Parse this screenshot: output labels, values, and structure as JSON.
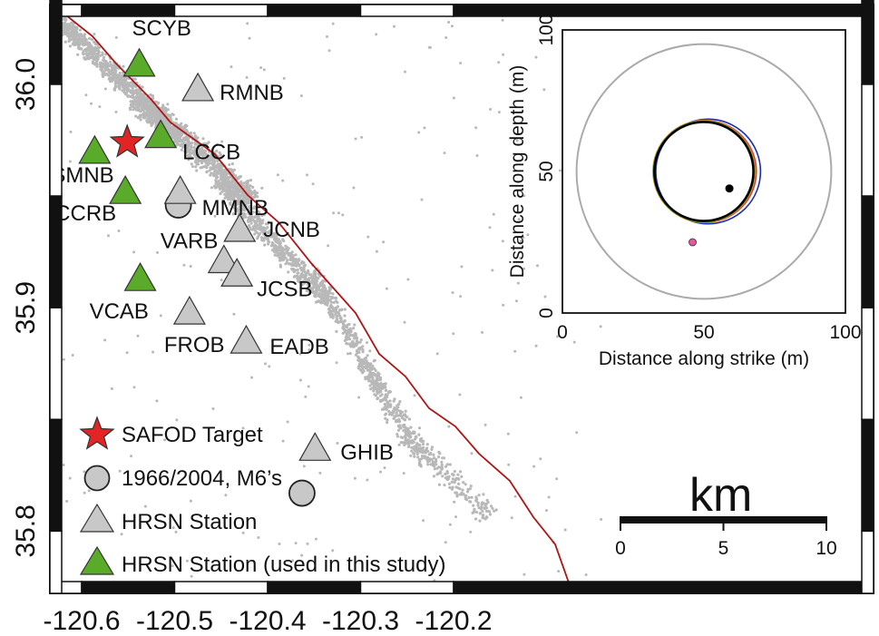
{
  "map": {
    "x_ticks": [
      {
        "value": -120.6,
        "label": "-120.6"
      },
      {
        "value": -120.5,
        "label": "-120.5"
      },
      {
        "value": -120.4,
        "label": "-120.4"
      },
      {
        "value": -120.3,
        "label": "-120.3"
      },
      {
        "value": -120.2,
        "label": "-120.2"
      }
    ],
    "y_ticks": [
      {
        "value": 36.0,
        "label": "36.0"
      },
      {
        "value": 35.9,
        "label": "35.9"
      },
      {
        "value": 35.8,
        "label": "35.8"
      }
    ],
    "fault_color": "#b01414",
    "seismicity_color": "#b8b8b8",
    "used_station_color": "#5aab2a",
    "station_color": "#c8c8c8",
    "target_color": "#e32424",
    "target": {
      "lon": -120.551,
      "lat": 35.974
    },
    "m6_events": [
      {
        "lon": -120.496,
        "lat": 35.946
      },
      {
        "lon": -120.363,
        "lat": 35.817
      }
    ],
    "stations": [
      {
        "name": "SCYB",
        "lon": -120.538,
        "lat": 36.009,
        "used": true
      },
      {
        "name": "RMNB",
        "lon": -120.475,
        "lat": 35.998,
        "used": false
      },
      {
        "name": "LCCB",
        "lon": -120.515,
        "lat": 35.977,
        "used": true
      },
      {
        "name": "SMNB",
        "lon": -120.586,
        "lat": 35.97,
        "used": true
      },
      {
        "name": "MMNB",
        "lon": -120.494,
        "lat": 35.952,
        "used": false
      },
      {
        "name": "CCRB",
        "lon": -120.553,
        "lat": 35.952,
        "used": true
      },
      {
        "name": "JCNB",
        "lon": -120.43,
        "lat": 35.935,
        "used": false
      },
      {
        "name": "VARB",
        "lon": -120.447,
        "lat": 35.921,
        "used": false
      },
      {
        "name": "JCSB",
        "lon": -120.433,
        "lat": 35.915,
        "used": false
      },
      {
        "name": "VCAB",
        "lon": -120.537,
        "lat": 35.913,
        "used": true
      },
      {
        "name": "FROB",
        "lon": -120.484,
        "lat": 35.898,
        "used": false
      },
      {
        "name": "EADB",
        "lon": -120.423,
        "lat": 35.885,
        "used": false
      },
      {
        "name": "GHIB",
        "lon": -120.349,
        "lat": 35.837,
        "used": false
      }
    ]
  },
  "legend": {
    "target_label": "SAFOD Target",
    "m6_label": "1966/2004, M6’s",
    "station_label": "HRSN Station",
    "used_station_label": "HRSN Station (used in this study)"
  },
  "scale_bar": {
    "unit": "km",
    "ticks": [
      {
        "km": 0,
        "label": "0"
      },
      {
        "km": 5,
        "label": "5"
      },
      {
        "km": 10,
        "label": "10"
      }
    ]
  },
  "inset": {
    "xlabel": "Distance along strike (m)",
    "ylabel": "Distance along depth (m)",
    "xlim": [
      0,
      100
    ],
    "ylim": [
      0,
      100
    ],
    "x_ticks": [
      {
        "value": 0,
        "label": "0"
      },
      {
        "value": 50,
        "label": "50"
      },
      {
        "value": 100,
        "label": "100"
      }
    ],
    "y_ticks": [
      {
        "value": 0,
        "label": "0"
      },
      {
        "value": 50,
        "label": "50"
      },
      {
        "value": 100,
        "label": "100"
      }
    ],
    "outer_circle": {
      "cx": 50,
      "cy": 50,
      "r": 45,
      "color": "#aaaaaa"
    },
    "rupture_circles": [
      {
        "cx": 51.5,
        "cy": 50,
        "r": 18.5,
        "color": "#1a2db5"
      },
      {
        "cx": 50.5,
        "cy": 50,
        "r": 18.0,
        "color": "#e3342f"
      },
      {
        "cx": 50.0,
        "cy": 50,
        "r": 18.0,
        "color": "#f39a1e"
      },
      {
        "cx": 50.0,
        "cy": 50,
        "r": 17.8,
        "color": "#2e9e3a"
      },
      {
        "cx": 50.0,
        "cy": 50,
        "r": 17.5,
        "color": "#000000"
      }
    ],
    "points": [
      {
        "x": 59,
        "y": 44,
        "color": "#000000"
      },
      {
        "x": 46,
        "y": 25,
        "color": "#e05aa0"
      }
    ]
  }
}
